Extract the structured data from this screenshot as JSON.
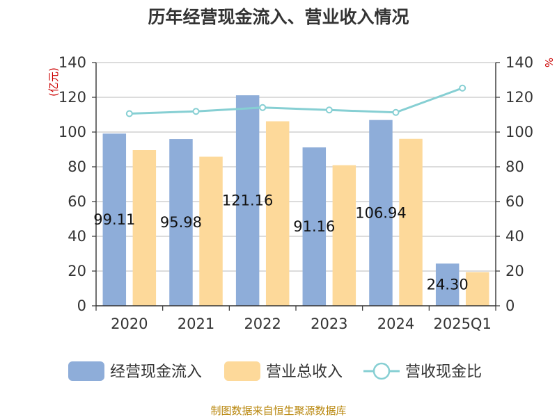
{
  "title": "历年经营现金流入、营业收入情况",
  "source": "制图数据来自恒生聚源数据库",
  "colors": {
    "cash_inflow": "#8eadd9",
    "revenue": "#fdd99a",
    "ratio": "#86cfd3",
    "unit_red": "#cc0000",
    "source_gold": "#b8860b"
  },
  "chart_data": {
    "type": "bar",
    "categories": [
      "2020",
      "2021",
      "2022",
      "2023",
      "2024",
      "2025Q1"
    ],
    "series": [
      {
        "name": "经营现金流入",
        "type": "bar",
        "axis": "left",
        "values": [
          99.11,
          95.98,
          121.16,
          91.16,
          106.94,
          24.3
        ],
        "data_labels": [
          "99.11",
          "95.98",
          "121.16",
          "91.16",
          "106.94",
          "24.30"
        ]
      },
      {
        "name": "营业总收入",
        "type": "bar",
        "axis": "left",
        "values": [
          89.6,
          85.8,
          106.2,
          80.9,
          96.1,
          19.4
        ]
      },
      {
        "name": "营收现金比",
        "type": "line",
        "axis": "right",
        "values": [
          110.6,
          111.9,
          114.1,
          112.7,
          111.3,
          125.3
        ]
      }
    ],
    "y_left": {
      "label": "(亿元)",
      "ylim": [
        0,
        140
      ],
      "ticks": [
        0,
        20,
        40,
        60,
        80,
        100,
        120,
        140
      ]
    },
    "y_right": {
      "label": "%",
      "ylim": [
        0,
        140
      ],
      "ticks": [
        0,
        20,
        40,
        60,
        80,
        100,
        120,
        140
      ]
    },
    "grid": true,
    "legend_position": "bottom"
  }
}
